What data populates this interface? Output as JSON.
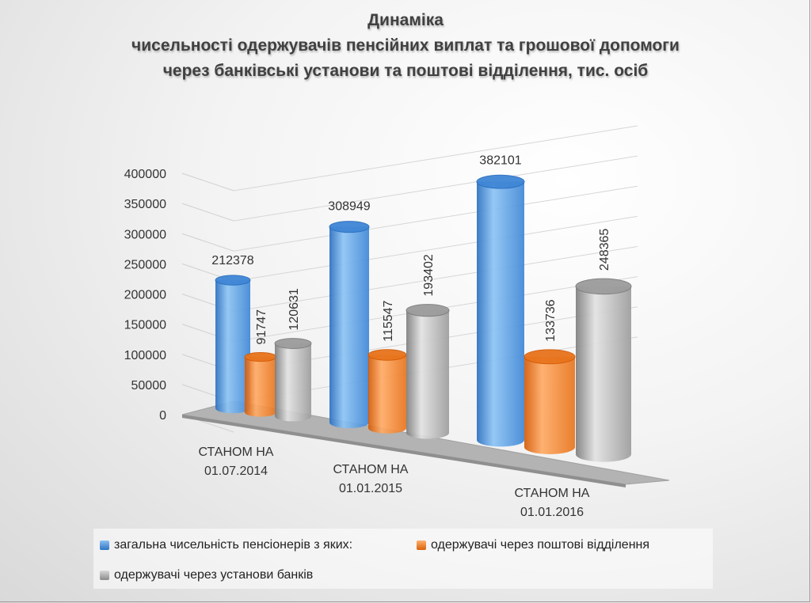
{
  "chart_data": {
    "type": "bar",
    "style": "3d-cylinder",
    "title": "Динаміка",
    "subtitle_lines": [
      "чисельності одержувачів пенсійних виплат та грошової допомоги",
      "через банківські установи та поштові відділення, тис. осіб"
    ],
    "categories": [
      [
        "СТАНОМ НА",
        "01.07.2014"
      ],
      [
        "СТАНОМ НА",
        "01.01.2015"
      ],
      [
        "СТАНОМ НА",
        "01.01.2016"
      ]
    ],
    "series": [
      {
        "name": "загальна чисельність пенсіонерів з яких:",
        "color": "#4a90d9",
        "values": [
          212378,
          308949,
          382101
        ]
      },
      {
        "name": "одержувачі через поштові відділення",
        "color": "#f07c22",
        "values": [
          91747,
          115547,
          133736
        ]
      },
      {
        "name": "одержувачі через установи банків",
        "color": "#a5a5a5",
        "values": [
          120631,
          193402,
          248365
        ]
      }
    ],
    "data_labels": [
      [
        "212378",
        "308949",
        "382101"
      ],
      [
        "91747",
        "115547",
        "133736"
      ],
      [
        "120631",
        "193402",
        "248365"
      ]
    ],
    "ylim": [
      0,
      400000
    ],
    "yticks": [
      "0",
      "50000",
      "100000",
      "150000",
      "200000",
      "250000",
      "300000",
      "350000",
      "400000"
    ],
    "grid": true,
    "legend_position": "bottom"
  }
}
